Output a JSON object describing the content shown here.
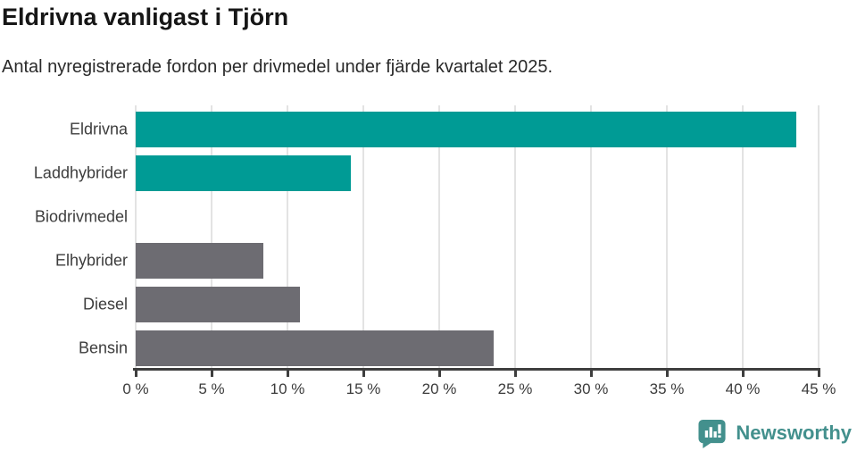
{
  "chart": {
    "title": "Eldrivna vanligast i Tjörn",
    "subtitle": "Antal nyregistrerade fordon per drivmedel under fjärde kvartalet 2025."
  },
  "chart_data": {
    "type": "bar",
    "orientation": "horizontal",
    "title": "Eldrivna vanligast i Tjörn",
    "subtitle": "Antal nyregistrerade fordon per drivmedel under fjärde kvartalet 2025.",
    "categories": [
      "Eldrivna",
      "Laddhybrider",
      "Biodrivmedel",
      "Elhybrider",
      "Diesel",
      "Bensin"
    ],
    "values": [
      43.5,
      14.2,
      0,
      8.4,
      10.8,
      23.6
    ],
    "unit": "%",
    "xlabel": "",
    "ylabel": "",
    "xlim": [
      0,
      45
    ],
    "tick_step": 5,
    "tick_labels": [
      "0 %",
      "5 %",
      "10 %",
      "15 %",
      "20 %",
      "25 %",
      "30 %",
      "35 %",
      "40 %",
      "45 %"
    ],
    "bar_colors": [
      "#009b95",
      "#009b95",
      "#6d6c72",
      "#6d6c72",
      "#6d6c72",
      "#6d6c72"
    ],
    "grid": "vertical",
    "legend": "none"
  },
  "colors": {
    "accent_teal": "#009b95",
    "neutral_gray": "#6d6c72",
    "brand_teal": "#43908d",
    "axis": "#3e3e3e",
    "gridline": "#e3e3e3"
  },
  "footer": {
    "brand": "Newsworthy"
  }
}
